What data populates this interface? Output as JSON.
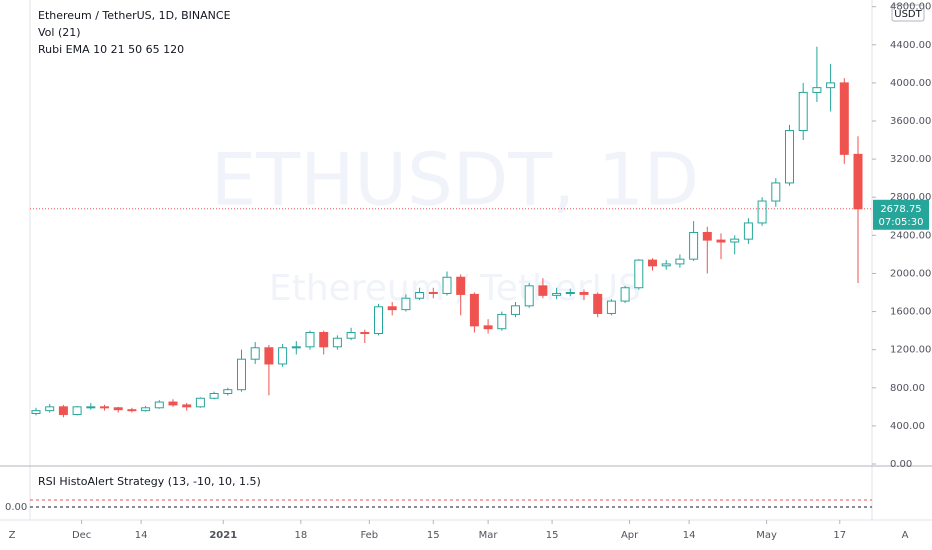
{
  "chart_data": {
    "type": "candlestick",
    "title": "Ethereum / TetherUS, 1D, BINANCE",
    "indicators": [
      "Vol (21)",
      "Rubi EMA 10 21 50 65 120"
    ],
    "watermark": "ETHUSDT, 1D",
    "watermark_sub": "Ethereum / TetherUS",
    "currency": "USDT",
    "up_color": "#26a69a",
    "down_color": "#ef5350",
    "open": [
      530,
      560,
      600,
      520,
      600,
      600,
      590,
      570,
      560,
      590,
      650,
      620,
      600,
      690,
      740,
      780,
      1100,
      1220,
      1050,
      1220,
      1230,
      1380,
      1230,
      1320,
      1380,
      1370,
      1650,
      1620,
      1740,
      1800,
      1790,
      1960,
      1780,
      1450,
      1420,
      1570,
      1660,
      1870,
      1770,
      1790,
      1800,
      1780,
      1580,
      1710,
      1850,
      2140,
      2080,
      2100,
      2150,
      2430,
      2350,
      2330,
      2360,
      2530,
      2760,
      2950,
      3500,
      3900,
      3950,
      4000,
      3250
    ],
    "high": [
      590,
      630,
      620,
      610,
      640,
      620,
      600,
      590,
      610,
      670,
      680,
      640,
      700,
      760,
      800,
      1200,
      1280,
      1250,
      1260,
      1290,
      1400,
      1400,
      1350,
      1430,
      1410,
      1680,
      1700,
      1780,
      1850,
      1850,
      2020,
      1990,
      1800,
      1520,
      1600,
      1700,
      1900,
      1950,
      1850,
      1840,
      1830,
      1800,
      1730,
      1870,
      2150,
      2160,
      2140,
      2200,
      2550,
      2490,
      2420,
      2400,
      2580,
      2800,
      3000,
      3560,
      4000,
      4380,
      4200,
      4050,
      3440
    ],
    "low": [
      510,
      540,
      490,
      510,
      570,
      560,
      540,
      540,
      550,
      580,
      600,
      560,
      590,
      680,
      720,
      760,
      1050,
      720,
      1020,
      1150,
      1200,
      1150,
      1200,
      1300,
      1270,
      1350,
      1560,
      1600,
      1720,
      1740,
      1770,
      1560,
      1380,
      1370,
      1400,
      1540,
      1640,
      1740,
      1730,
      1760,
      1720,
      1540,
      1560,
      1690,
      1830,
      2030,
      2040,
      2060,
      2130,
      2000,
      2150,
      2200,
      2310,
      2500,
      2700,
      2920,
      3400,
      3800,
      3700,
      3150,
      1900
    ],
    "close": [
      560,
      600,
      520,
      600,
      600,
      590,
      570,
      560,
      590,
      650,
      620,
      600,
      690,
      740,
      780,
      1100,
      1220,
      1050,
      1220,
      1230,
      1380,
      1230,
      1320,
      1380,
      1370,
      1650,
      1620,
      1740,
      1800,
      1790,
      1960,
      1780,
      1450,
      1420,
      1570,
      1660,
      1870,
      1770,
      1790,
      1800,
      1780,
      1580,
      1710,
      1850,
      2140,
      2080,
      2100,
      2150,
      2430,
      2350,
      2330,
      2360,
      2530,
      2760,
      2950,
      3500,
      3900,
      3950,
      4000,
      3250,
      2678.75
    ],
    "last_price": 2678.75,
    "countdown": "07:05:30",
    "ylim": [
      0,
      4870
    ],
    "yticks": [
      {
        "value": 0,
        "label": "0.00"
      },
      {
        "value": 400,
        "label": "400.00"
      },
      {
        "value": 800,
        "label": "800.00"
      },
      {
        "value": 1200,
        "label": "1200.00"
      },
      {
        "value": 1600,
        "label": "1600.00"
      },
      {
        "value": 2000,
        "label": "2000.00"
      },
      {
        "value": 2400,
        "label": "2400.00"
      },
      {
        "value": 2800,
        "label": "2800.00"
      },
      {
        "value": 3200,
        "label": "3200.00"
      },
      {
        "value": 3600,
        "label": "3600.00"
      },
      {
        "value": 4000,
        "label": "4000.00"
      },
      {
        "value": 4400,
        "label": "4400.00"
      },
      {
        "value": 4800,
        "label": "4800.00"
      }
    ],
    "xticks": [
      {
        "value": 3.33,
        "label": "Dec"
      },
      {
        "value": 7.67,
        "label": "14"
      },
      {
        "value": 13.67,
        "label": "2021"
      },
      {
        "value": 19.33,
        "label": "18"
      },
      {
        "value": 24.33,
        "label": "Feb"
      },
      {
        "value": 29,
        "label": "15"
      },
      {
        "value": 33,
        "label": "Mar"
      },
      {
        "value": 37.67,
        "label": "15"
      },
      {
        "value": 43.33,
        "label": "Apr"
      },
      {
        "value": 47.67,
        "label": "14"
      },
      {
        "value": 53.33,
        "label": "May"
      },
      {
        "value": 58.67,
        "label": "17"
      }
    ],
    "rsi_pane": {
      "title": "RSI HistoAlert Strategy (13, -10, 10, 1.5)",
      "ytick": "0.00"
    },
    "toolbar": {
      "left": "Z",
      "right": "A"
    }
  }
}
